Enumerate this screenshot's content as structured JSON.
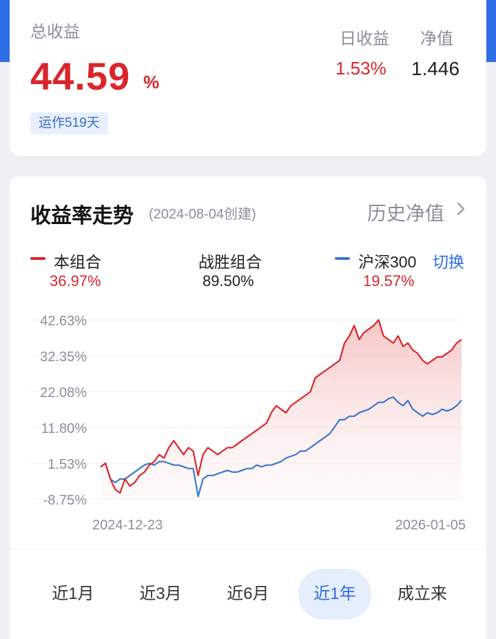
{
  "summary": {
    "total_return_label": "总收益",
    "total_return_value": "44.59",
    "total_return_unit": "%",
    "running_days": "运作519天",
    "daily_return_label": "日收益",
    "daily_return_value": "1.53%",
    "nav_label": "净值",
    "nav_value": "1.446"
  },
  "trend": {
    "title": "收益率走势",
    "created": "(2024-08-04创建)",
    "history_link": "历史净值",
    "switch_label": "切换",
    "legend": [
      {
        "name": "本组合",
        "value": "36.97%",
        "color": "#d9262c"
      },
      {
        "name": "战胜组合",
        "value": "89.50%"
      },
      {
        "name": "沪深300",
        "value": "19.57%",
        "color": "#3b78d0"
      }
    ]
  },
  "chart_data": {
    "type": "line",
    "x_labels": [
      "2024-12-23",
      "2026-01-05"
    ],
    "y_ticks": [
      "42.63%",
      "32.35%",
      "22.08%",
      "11.80%",
      "1.53%",
      "-8.75%"
    ],
    "ylim": [
      -8.75,
      42.63
    ],
    "grid": true,
    "series": [
      {
        "name": "本组合",
        "color": "#d9262c",
        "fill": true,
        "values": [
          0.5,
          1.5,
          -3,
          -6,
          -7,
          -3,
          -5,
          -4,
          -2,
          -1,
          1,
          2,
          4,
          3,
          6,
          8,
          6,
          4,
          6,
          5,
          -2,
          4,
          6,
          5,
          4,
          5,
          6,
          6,
          7,
          8,
          9,
          10,
          11,
          12,
          13,
          16,
          18,
          17,
          16,
          18,
          19,
          20,
          21,
          22,
          26,
          27,
          28,
          29,
          30,
          31,
          36,
          38,
          41,
          37,
          39,
          40,
          41,
          42.63,
          38,
          37,
          36,
          38,
          35,
          36,
          34,
          33,
          31,
          30,
          31,
          32,
          32,
          33,
          34,
          36,
          37
        ]
      },
      {
        "name": "沪深300",
        "color": "#3b78d0",
        "fill": false,
        "values": [
          0.5,
          1.5,
          -3,
          -4,
          -3,
          -3,
          -2,
          -1,
          0,
          1,
          1.5,
          1,
          2,
          2,
          1.5,
          1,
          1,
          0.5,
          0,
          0,
          -8,
          -3,
          -2,
          -2,
          -1.5,
          -1,
          -0.5,
          -1,
          -1,
          -0.5,
          0,
          0,
          1,
          0.5,
          1,
          1,
          1.5,
          2,
          3,
          3.5,
          4,
          5,
          5,
          6,
          7,
          8,
          9,
          10,
          12,
          14,
          14,
          15,
          15,
          16,
          16.5,
          17,
          18,
          19,
          19,
          20,
          20.5,
          19,
          18,
          19.5,
          17,
          16,
          15,
          16,
          15.5,
          16,
          17,
          16.5,
          17,
          18,
          19.57
        ]
      }
    ]
  },
  "range_tabs": [
    {
      "label": "近1月"
    },
    {
      "label": "近3月"
    },
    {
      "label": "近6月"
    },
    {
      "label": "近1年",
      "active": true
    },
    {
      "label": "成立来"
    }
  ]
}
